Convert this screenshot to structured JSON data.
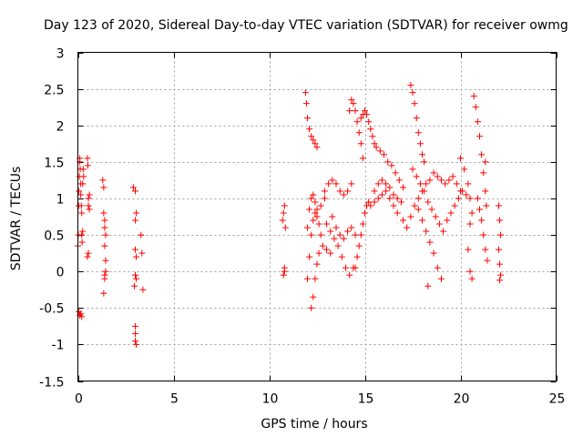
{
  "chart_data": {
    "type": "scatter",
    "title": "Day 123 of 2020, Sidereal Day-to-day VTEC variation (SDTVAR) for receiver owmg",
    "xlabel": "GPS time / hours",
    "ylabel": "SDTVAR / TECUs",
    "xlim": [
      0,
      25
    ],
    "ylim": [
      -1.5,
      3
    ],
    "xticks": [
      0,
      5,
      10,
      15,
      20,
      25
    ],
    "xtick_labels": [
      "0",
      "5",
      "10",
      "15",
      "20",
      "25"
    ],
    "yticks": [
      -1.5,
      -1,
      -0.5,
      0,
      0.5,
      1,
      1.5,
      2,
      2.5,
      3
    ],
    "ytick_labels": [
      "-1.5",
      "-1",
      "-0.5",
      "0",
      "0.5",
      "1",
      "1.5",
      "2",
      "2.5",
      "3"
    ],
    "grid": true,
    "marker": "+",
    "series": [
      {
        "name": "SDTVAR",
        "color": "#ff0000",
        "points": [
          [
            0.0,
            0.35
          ],
          [
            0.02,
            0.5
          ],
          [
            0.05,
            0.9
          ],
          [
            0.05,
            1.1
          ],
          [
            0.08,
            1.3
          ],
          [
            0.1,
            1.5
          ],
          [
            0.1,
            1.55
          ],
          [
            0.12,
            1.4
          ],
          [
            0.15,
            1.2
          ],
          [
            0.15,
            1.05
          ],
          [
            0.18,
            0.9
          ],
          [
            0.2,
            0.8
          ],
          [
            0.2,
            0.5
          ],
          [
            0.22,
            0.4
          ],
          [
            0.25,
            0.55
          ],
          [
            0.25,
            1.2
          ],
          [
            0.28,
            1.4
          ],
          [
            0.3,
            1.3
          ],
          [
            0.05,
            -0.55
          ],
          [
            0.1,
            -0.6
          ],
          [
            0.15,
            -0.58
          ],
          [
            0.2,
            -0.62
          ],
          [
            0.5,
            1.55
          ],
          [
            0.52,
            1.45
          ],
          [
            0.55,
            1.0
          ],
          [
            0.55,
            0.9
          ],
          [
            0.6,
            0.85
          ],
          [
            0.6,
            1.05
          ],
          [
            0.5,
            0.2
          ],
          [
            0.55,
            0.25
          ],
          [
            1.3,
            1.25
          ],
          [
            1.35,
            1.15
          ],
          [
            1.35,
            0.8
          ],
          [
            1.4,
            0.6
          ],
          [
            1.4,
            0.35
          ],
          [
            1.45,
            0.15
          ],
          [
            1.4,
            -0.05
          ],
          [
            1.35,
            -0.3
          ],
          [
            1.4,
            -0.1
          ],
          [
            1.45,
            0.0
          ],
          [
            1.4,
            0.7
          ],
          [
            1.45,
            0.5
          ],
          [
            2.9,
            1.15
          ],
          [
            3.0,
            1.1
          ],
          [
            3.05,
            0.8
          ],
          [
            3.0,
            0.7
          ],
          [
            3.0,
            0.3
          ],
          [
            3.05,
            0.2
          ],
          [
            3.0,
            -0.05
          ],
          [
            2.95,
            -0.2
          ],
          [
            3.05,
            -0.1
          ],
          [
            3.0,
            -0.85
          ],
          [
            3.0,
            -0.95
          ],
          [
            3.05,
            -1.0
          ],
          [
            3.0,
            -0.75
          ],
          [
            3.3,
            0.5
          ],
          [
            3.35,
            0.25
          ],
          [
            3.4,
            -0.25
          ],
          [
            10.8,
            0.0
          ],
          [
            10.75,
            -0.05
          ],
          [
            10.8,
            0.05
          ],
          [
            10.7,
            0.7
          ],
          [
            10.75,
            0.8
          ],
          [
            10.8,
            0.9
          ],
          [
            10.85,
            0.6
          ],
          [
            11.9,
            2.45
          ],
          [
            11.95,
            2.3
          ],
          [
            12.0,
            2.1
          ],
          [
            12.1,
            1.95
          ],
          [
            12.2,
            1.85
          ],
          [
            12.3,
            1.8
          ],
          [
            12.4,
            1.75
          ],
          [
            12.5,
            1.7
          ],
          [
            12.0,
            -0.1
          ],
          [
            12.1,
            0.2
          ],
          [
            12.2,
            0.5
          ],
          [
            12.3,
            0.7
          ],
          [
            12.4,
            0.8
          ],
          [
            12.5,
            0.75
          ],
          [
            12.6,
            0.65
          ],
          [
            12.7,
            0.5
          ],
          [
            12.0,
            0.6
          ],
          [
            12.1,
            0.85
          ],
          [
            12.2,
            1.0
          ],
          [
            12.3,
            1.05
          ],
          [
            12.4,
            0.95
          ],
          [
            12.5,
            0.85
          ],
          [
            12.7,
            0.9
          ],
          [
            12.9,
            1.0
          ],
          [
            12.2,
            -0.5
          ],
          [
            12.3,
            -0.35
          ],
          [
            12.4,
            -0.1
          ],
          [
            12.5,
            0.1
          ],
          [
            12.6,
            0.25
          ],
          [
            12.8,
            0.35
          ],
          [
            13.0,
            0.3
          ],
          [
            13.2,
            0.25
          ],
          [
            12.9,
            1.1
          ],
          [
            13.1,
            1.2
          ],
          [
            13.3,
            1.25
          ],
          [
            13.5,
            1.2
          ],
          [
            13.7,
            1.1
          ],
          [
            13.9,
            1.05
          ],
          [
            14.1,
            1.1
          ],
          [
            14.3,
            1.2
          ],
          [
            13.0,
            0.65
          ],
          [
            13.2,
            0.55
          ],
          [
            13.4,
            0.45
          ],
          [
            13.6,
            0.35
          ],
          [
            13.8,
            0.2
          ],
          [
            14.0,
            0.05
          ],
          [
            14.2,
            -0.05
          ],
          [
            14.4,
            0.05
          ],
          [
            13.3,
            0.75
          ],
          [
            13.5,
            0.6
          ],
          [
            13.7,
            0.5
          ],
          [
            13.9,
            0.45
          ],
          [
            14.1,
            0.55
          ],
          [
            14.3,
            0.6
          ],
          [
            14.5,
            0.5
          ],
          [
            14.2,
            2.2
          ],
          [
            14.3,
            2.35
          ],
          [
            14.4,
            2.3
          ],
          [
            14.5,
            2.2
          ],
          [
            14.6,
            2.05
          ],
          [
            14.7,
            1.9
          ],
          [
            14.8,
            1.75
          ],
          [
            14.9,
            1.55
          ],
          [
            14.5,
            0.05
          ],
          [
            14.6,
            0.2
          ],
          [
            14.7,
            0.35
          ],
          [
            14.8,
            0.5
          ],
          [
            14.9,
            0.65
          ],
          [
            15.0,
            0.8
          ],
          [
            15.1,
            0.9
          ],
          [
            15.2,
            0.95
          ],
          [
            14.8,
            2.1
          ],
          [
            14.9,
            2.15
          ],
          [
            15.0,
            2.2
          ],
          [
            15.1,
            2.15
          ],
          [
            15.2,
            2.05
          ],
          [
            15.3,
            1.95
          ],
          [
            15.4,
            1.85
          ],
          [
            15.5,
            1.75
          ],
          [
            15.6,
            1.7
          ],
          [
            15.8,
            1.65
          ],
          [
            16.0,
            1.6
          ],
          [
            16.2,
            1.5
          ],
          [
            16.4,
            1.45
          ],
          [
            16.6,
            1.35
          ],
          [
            16.8,
            1.25
          ],
          [
            17.0,
            1.15
          ],
          [
            15.3,
            0.9
          ],
          [
            15.5,
            0.95
          ],
          [
            15.7,
            1.0
          ],
          [
            15.9,
            1.05
          ],
          [
            16.1,
            1.1
          ],
          [
            16.3,
            1.0
          ],
          [
            16.5,
            0.9
          ],
          [
            16.7,
            0.8
          ],
          [
            15.5,
            1.1
          ],
          [
            15.7,
            1.2
          ],
          [
            15.9,
            1.25
          ],
          [
            16.1,
            1.2
          ],
          [
            16.3,
            1.15
          ],
          [
            16.5,
            1.05
          ],
          [
            16.7,
            1.0
          ],
          [
            16.9,
            0.95
          ],
          [
            17.0,
            0.7
          ],
          [
            17.2,
            0.6
          ],
          [
            17.4,
            0.75
          ],
          [
            17.6,
            0.9
          ],
          [
            17.8,
            1.0
          ],
          [
            18.0,
            1.1
          ],
          [
            18.2,
            1.2
          ],
          [
            18.4,
            1.25
          ],
          [
            17.4,
            2.55
          ],
          [
            17.5,
            2.45
          ],
          [
            17.6,
            2.3
          ],
          [
            17.7,
            2.1
          ],
          [
            17.8,
            1.9
          ],
          [
            17.9,
            1.75
          ],
          [
            18.0,
            1.6
          ],
          [
            18.1,
            1.5
          ],
          [
            17.5,
            1.4
          ],
          [
            17.7,
            1.3
          ],
          [
            17.9,
            1.2
          ],
          [
            18.1,
            1.1
          ],
          [
            18.3,
            0.95
          ],
          [
            18.5,
            0.85
          ],
          [
            18.7,
            0.75
          ],
          [
            18.9,
            0.65
          ],
          [
            17.8,
            0.85
          ],
          [
            18.0,
            0.7
          ],
          [
            18.2,
            0.55
          ],
          [
            18.4,
            0.4
          ],
          [
            18.6,
            0.25
          ],
          [
            18.8,
            0.05
          ],
          [
            19.0,
            -0.1
          ],
          [
            18.3,
            -0.2
          ],
          [
            18.6,
            1.35
          ],
          [
            18.8,
            1.3
          ],
          [
            19.0,
            1.25
          ],
          [
            19.2,
            1.2
          ],
          [
            19.4,
            1.25
          ],
          [
            19.6,
            1.3
          ],
          [
            19.8,
            1.2
          ],
          [
            20.0,
            1.1
          ],
          [
            19.1,
            0.55
          ],
          [
            19.3,
            0.7
          ],
          [
            19.5,
            0.8
          ],
          [
            19.7,
            0.9
          ],
          [
            19.9,
            1.0
          ],
          [
            20.1,
            1.1
          ],
          [
            20.3,
            1.05
          ],
          [
            20.5,
            1.0
          ],
          [
            20.0,
            1.55
          ],
          [
            20.2,
            1.4
          ],
          [
            20.4,
            1.2
          ],
          [
            20.4,
            0.3
          ],
          [
            20.5,
            0.0
          ],
          [
            20.6,
            -0.1
          ],
          [
            20.5,
            0.65
          ],
          [
            20.6,
            0.8
          ],
          [
            20.7,
            2.4
          ],
          [
            20.8,
            2.25
          ],
          [
            20.9,
            2.05
          ],
          [
            21.0,
            1.85
          ],
          [
            21.1,
            1.6
          ],
          [
            21.2,
            1.35
          ],
          [
            21.3,
            1.1
          ],
          [
            21.35,
            0.9
          ],
          [
            20.9,
            1.0
          ],
          [
            21.0,
            0.85
          ],
          [
            21.1,
            0.7
          ],
          [
            21.2,
            0.5
          ],
          [
            21.3,
            0.3
          ],
          [
            21.4,
            0.15
          ],
          [
            21.3,
            1.5
          ],
          [
            22.0,
            0.9
          ],
          [
            22.05,
            0.7
          ],
          [
            22.1,
            0.5
          ],
          [
            22.0,
            0.3
          ],
          [
            22.05,
            0.1
          ],
          [
            22.1,
            -0.05
          ],
          [
            22.05,
            -0.12
          ]
        ]
      }
    ]
  }
}
